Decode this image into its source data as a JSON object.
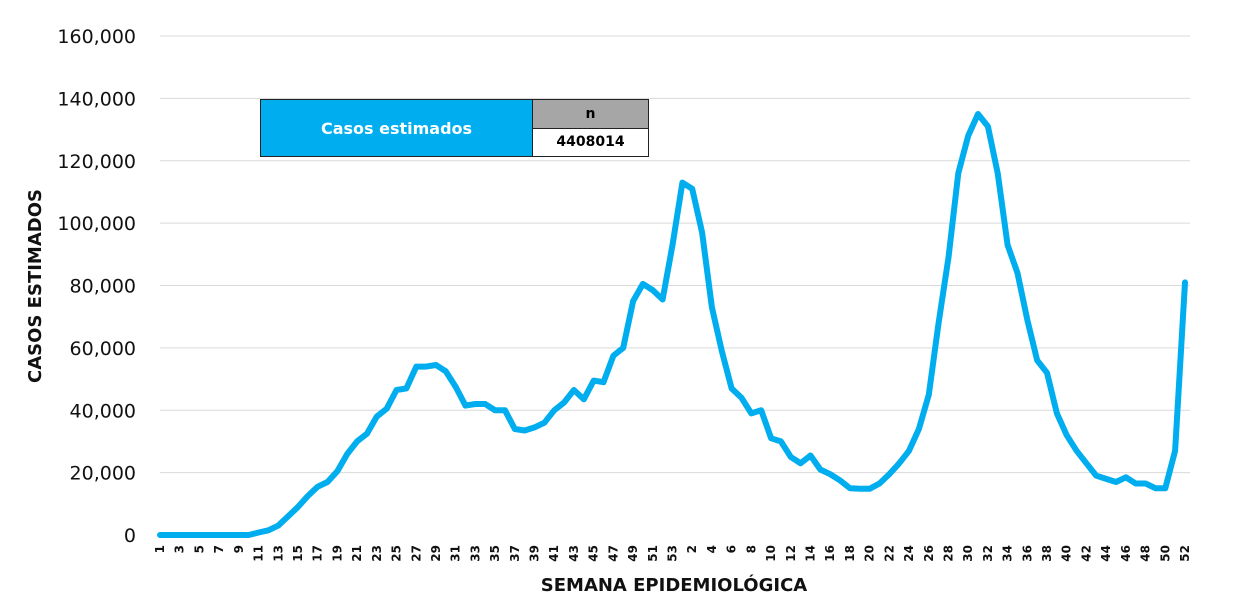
{
  "chart_data": {
    "type": "line",
    "xlabel": "SEMANA EPIDEMIOLÓGICA",
    "ylabel": "CASOS ESTIMADOS",
    "ylim": [
      0,
      160000
    ],
    "y_ticks": [
      "0",
      "20,000",
      "40,000",
      "60,000",
      "80,000",
      "100,000",
      "120,000",
      "140,000",
      "160,000"
    ],
    "grid": true,
    "series_color": "#00AEEF",
    "x_tick_labels": [
      "1",
      "3",
      "5",
      "7",
      "9",
      "11",
      "13",
      "15",
      "17",
      "19",
      "21",
      "23",
      "25",
      "27",
      "29",
      "31",
      "33",
      "35",
      "37",
      "39",
      "41",
      "43",
      "45",
      "47",
      "49",
      "51",
      "53",
      "2",
      "4",
      "6",
      "8",
      "10",
      "12",
      "14",
      "16",
      "18",
      "20",
      "22",
      "24",
      "26",
      "28",
      "30",
      "32",
      "34",
      "36",
      "38",
      "40",
      "42",
      "44",
      "46",
      "48",
      "50",
      "52"
    ],
    "x": [
      "1",
      "2",
      "3",
      "4",
      "5",
      "6",
      "7",
      "8",
      "9",
      "10",
      "11",
      "12",
      "13",
      "14",
      "15",
      "16",
      "17",
      "18",
      "19",
      "20",
      "21",
      "22",
      "23",
      "24",
      "25",
      "26",
      "27",
      "28",
      "29",
      "30",
      "31",
      "32",
      "33",
      "34",
      "35",
      "36",
      "37",
      "38",
      "39",
      "40",
      "41",
      "42",
      "43",
      "44",
      "45",
      "46",
      "47",
      "48",
      "49",
      "50",
      "51",
      "52",
      "53",
      "1",
      "2",
      "3",
      "4",
      "5",
      "6",
      "7",
      "8",
      "9",
      "10",
      "11",
      "12",
      "13",
      "14",
      "15",
      "16",
      "17",
      "18",
      "19",
      "20",
      "21",
      "22",
      "23",
      "24",
      "25",
      "26",
      "27",
      "28",
      "29",
      "30",
      "31",
      "32",
      "33",
      "34",
      "35",
      "36",
      "37",
      "38",
      "39",
      "40",
      "41",
      "42",
      "43",
      "44",
      "45",
      "46",
      "47",
      "48",
      "49",
      "50",
      "51",
      "52"
    ],
    "series": [
      {
        "values": [
          0,
          0,
          0,
          0,
          0,
          0,
          0,
          0,
          0,
          0,
          800,
          1500,
          3000,
          6000,
          9000,
          12500,
          15500,
          17000,
          20500,
          26000,
          30000,
          32500,
          38000,
          40500,
          46500,
          47000,
          54000,
          54000,
          54500,
          52500,
          47500,
          41500,
          42000,
          42000,
          40000,
          40000,
          34000,
          33500,
          34500,
          36000,
          40000,
          42500,
          46500,
          43500,
          49500,
          49000,
          57500,
          60000,
          75000,
          80500,
          78500,
          75500,
          93000,
          113000,
          111000,
          97000,
          73000,
          59000,
          47000,
          44000,
          39000,
          40000,
          31000,
          30000,
          25000,
          23000,
          25500,
          21000,
          19500,
          17500,
          15000,
          14800,
          14800,
          16500,
          19500,
          23000,
          27000,
          34000,
          45000,
          68000,
          89000,
          116000,
          128000,
          135000,
          131000,
          116000,
          93000,
          84000,
          69000,
          56000,
          52000,
          39000,
          32000,
          27000,
          23000,
          19000,
          18000,
          17000,
          18500,
          16500,
          16500,
          15000,
          15000,
          27000,
          81000
        ]
      }
    ]
  },
  "table": {
    "label": "Casos estimados",
    "n_header": "n",
    "n_value": "4408014"
  }
}
